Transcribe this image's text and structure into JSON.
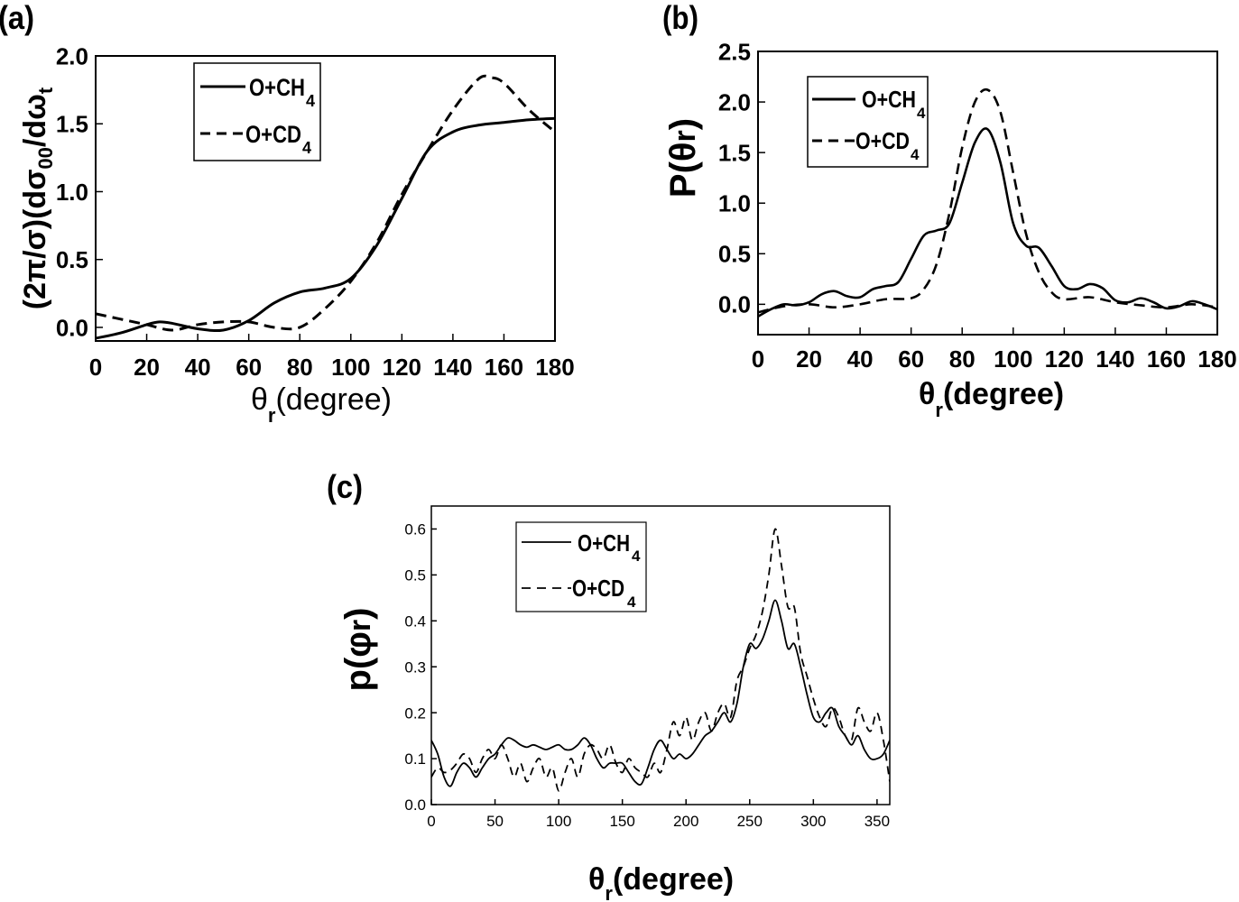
{
  "chart_data": [
    {
      "type": "line",
      "panel_label": "(a)",
      "ylabel": "(2π/σ)(dσ",
      "ylabel_sub": "00",
      "ylabel_mid": "/dω",
      "ylabel_sub2": "t",
      "xlabel_main": "θ",
      "xlabel_sub": "r",
      "xlabel_rest": "(degree)",
      "xlim": [
        0,
        180
      ],
      "ylim": [
        -0.1,
        2.0
      ],
      "xticks": [
        "0",
        "20",
        "40",
        "60",
        "80",
        "100",
        "120",
        "140",
        "160",
        "180"
      ],
      "yticks": [
        "0.0",
        "0.5",
        "1.0",
        "1.5",
        "2.0"
      ],
      "legend": [
        {
          "label": "O+CH",
          "sub": "4"
        },
        {
          "label": "O+CD",
          "sub": "4"
        }
      ],
      "series": [
        {
          "name": "O+CH4",
          "style": "solid",
          "x": [
            0,
            10,
            20,
            25,
            30,
            40,
            50,
            60,
            70,
            80,
            90,
            100,
            110,
            120,
            130,
            140,
            150,
            160,
            170,
            180
          ],
          "y": [
            -0.08,
            -0.04,
            0.02,
            0.04,
            0.03,
            -0.01,
            -0.02,
            0.05,
            0.18,
            0.26,
            0.29,
            0.36,
            0.6,
            0.95,
            1.3,
            1.44,
            1.49,
            1.51,
            1.53,
            1.54
          ]
        },
        {
          "name": "O+CD4",
          "style": "dashed",
          "x": [
            0,
            10,
            20,
            30,
            40,
            50,
            60,
            70,
            80,
            90,
            100,
            110,
            120,
            130,
            140,
            150,
            155,
            160,
            170,
            180
          ],
          "y": [
            0.1,
            0.06,
            0.02,
            -0.02,
            0.02,
            0.04,
            0.04,
            0.0,
            0.0,
            0.14,
            0.34,
            0.62,
            0.98,
            1.3,
            1.6,
            1.83,
            1.84,
            1.8,
            1.6,
            1.44
          ]
        }
      ]
    },
    {
      "type": "line",
      "panel_label": "(b)",
      "ylabel": "P(θ",
      "ylabel_sub": "r",
      "ylabel_close": ")",
      "xlabel_main": "θ",
      "xlabel_sub": "r",
      "xlabel_rest": "(degree)",
      "xlim": [
        0,
        180
      ],
      "ylim": [
        -0.3,
        2.5
      ],
      "xticks": [
        "0",
        "20",
        "40",
        "60",
        "80",
        "100",
        "120",
        "140",
        "160",
        "180"
      ],
      "yticks": [
        "0.0",
        "0.5",
        "1.0",
        "1.5",
        "2.0",
        "2.5"
      ],
      "legend": [
        {
          "label": "O+CH",
          "sub": "4"
        },
        {
          "label": "O+CD",
          "sub": "4"
        }
      ],
      "series": [
        {
          "name": "O+CH4",
          "style": "solid",
          "x": [
            0,
            5,
            10,
            15,
            20,
            25,
            30,
            35,
            40,
            45,
            50,
            55,
            60,
            65,
            70,
            75,
            80,
            85,
            90,
            95,
            100,
            105,
            110,
            115,
            120,
            125,
            130,
            135,
            140,
            145,
            150,
            155,
            160,
            165,
            170,
            175,
            180
          ],
          "y": [
            -0.12,
            -0.05,
            0.0,
            -0.01,
            0.02,
            0.1,
            0.13,
            0.08,
            0.07,
            0.15,
            0.18,
            0.22,
            0.45,
            0.68,
            0.73,
            0.8,
            1.2,
            1.6,
            1.73,
            1.4,
            0.8,
            0.58,
            0.56,
            0.38,
            0.18,
            0.15,
            0.2,
            0.16,
            0.04,
            0.02,
            0.06,
            0.02,
            -0.04,
            -0.02,
            0.03,
            0.0,
            -0.05
          ]
        },
        {
          "name": "O+CD4",
          "style": "dashed",
          "x": [
            0,
            10,
            20,
            30,
            40,
            50,
            60,
            65,
            70,
            75,
            80,
            85,
            90,
            95,
            100,
            105,
            110,
            115,
            120,
            130,
            140,
            150,
            160,
            170,
            180
          ],
          "y": [
            -0.08,
            -0.02,
            0.0,
            -0.03,
            0.0,
            0.05,
            0.06,
            0.15,
            0.4,
            0.9,
            1.55,
            2.0,
            2.12,
            1.9,
            1.3,
            0.7,
            0.32,
            0.12,
            0.05,
            0.07,
            0.02,
            -0.01,
            -0.03,
            0.0,
            -0.03
          ]
        }
      ]
    },
    {
      "type": "line",
      "panel_label": "(c)",
      "ylabel": "p(φ",
      "ylabel_sub": "r",
      "ylabel_close": ")",
      "xlabel_main": "θ",
      "xlabel_sub": "r",
      "xlabel_rest": "(degree)",
      "xlim": [
        0,
        360
      ],
      "ylim": [
        0.0,
        0.65
      ],
      "xticks": [
        "0",
        "50",
        "100",
        "150",
        "200",
        "250",
        "300",
        "350"
      ],
      "yticks": [
        "0.0",
        "0.1",
        "0.2",
        "0.3",
        "0.4",
        "0.5",
        "0.6"
      ],
      "legend": [
        {
          "label": "O+CH",
          "sub": "4"
        },
        {
          "label": "O+CD",
          "sub": "4"
        }
      ],
      "series": [
        {
          "name": "O+CH4",
          "style": "solid",
          "x": [
            0,
            5,
            10,
            15,
            20,
            25,
            30,
            35,
            40,
            45,
            50,
            55,
            60,
            65,
            70,
            75,
            80,
            85,
            90,
            95,
            100,
            105,
            110,
            115,
            120,
            125,
            130,
            135,
            140,
            145,
            150,
            155,
            160,
            165,
            170,
            175,
            180,
            185,
            190,
            195,
            200,
            205,
            210,
            215,
            220,
            225,
            230,
            235,
            240,
            245,
            250,
            255,
            260,
            265,
            270,
            275,
            280,
            285,
            290,
            295,
            300,
            305,
            310,
            315,
            320,
            325,
            330,
            335,
            340,
            345,
            350,
            355,
            360
          ],
          "y": [
            0.14,
            0.11,
            0.06,
            0.04,
            0.07,
            0.09,
            0.08,
            0.06,
            0.08,
            0.1,
            0.11,
            0.13,
            0.145,
            0.14,
            0.13,
            0.125,
            0.13,
            0.125,
            0.12,
            0.125,
            0.13,
            0.12,
            0.12,
            0.13,
            0.145,
            0.13,
            0.1,
            0.08,
            0.09,
            0.09,
            0.09,
            0.07,
            0.05,
            0.045,
            0.08,
            0.12,
            0.14,
            0.12,
            0.1,
            0.11,
            0.1,
            0.11,
            0.13,
            0.15,
            0.16,
            0.18,
            0.2,
            0.18,
            0.22,
            0.3,
            0.35,
            0.34,
            0.36,
            0.4,
            0.445,
            0.4,
            0.34,
            0.35,
            0.3,
            0.24,
            0.19,
            0.18,
            0.2,
            0.21,
            0.17,
            0.15,
            0.13,
            0.15,
            0.12,
            0.1,
            0.1,
            0.11,
            0.14
          ]
        },
        {
          "name": "O+CD4",
          "style": "dashed",
          "x": [
            0,
            5,
            10,
            15,
            20,
            25,
            30,
            35,
            40,
            45,
            50,
            55,
            60,
            65,
            70,
            75,
            80,
            85,
            90,
            95,
            100,
            105,
            110,
            115,
            120,
            125,
            130,
            135,
            140,
            145,
            150,
            155,
            160,
            165,
            170,
            175,
            180,
            185,
            190,
            195,
            200,
            205,
            210,
            215,
            220,
            225,
            230,
            235,
            240,
            245,
            250,
            255,
            260,
            265,
            270,
            275,
            280,
            285,
            290,
            295,
            300,
            305,
            310,
            315,
            320,
            325,
            330,
            335,
            340,
            345,
            350,
            355,
            360
          ],
          "y": [
            0.06,
            0.08,
            0.07,
            0.075,
            0.09,
            0.11,
            0.1,
            0.07,
            0.1,
            0.12,
            0.1,
            0.13,
            0.1,
            0.06,
            0.09,
            0.05,
            0.08,
            0.1,
            0.06,
            0.08,
            0.03,
            0.07,
            0.1,
            0.06,
            0.11,
            0.13,
            0.12,
            0.1,
            0.13,
            0.09,
            0.07,
            0.1,
            0.08,
            0.07,
            0.06,
            0.09,
            0.07,
            0.12,
            0.18,
            0.15,
            0.19,
            0.14,
            0.18,
            0.2,
            0.16,
            0.2,
            0.22,
            0.19,
            0.27,
            0.3,
            0.34,
            0.37,
            0.42,
            0.5,
            0.6,
            0.52,
            0.43,
            0.43,
            0.33,
            0.28,
            0.23,
            0.19,
            0.17,
            0.21,
            0.19,
            0.15,
            0.14,
            0.21,
            0.18,
            0.16,
            0.2,
            0.14,
            0.05
          ]
        }
      ]
    }
  ]
}
